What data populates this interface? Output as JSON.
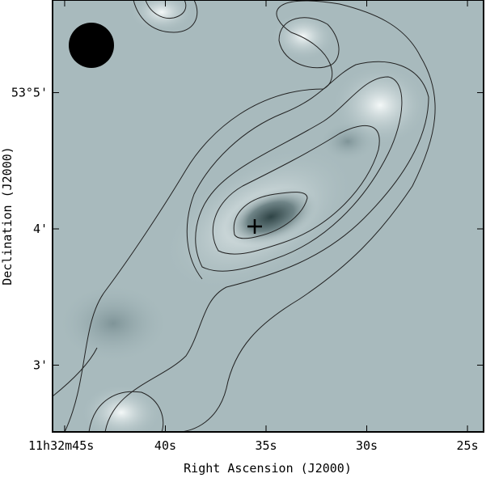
{
  "chart_data": {
    "type": "image",
    "x_label": "Right Ascension (J2000)",
    "y_label": "Declination (J2000)",
    "xlim": [
      45.6,
      24.2
    ],
    "xticks": [
      {
        "value": 45,
        "label": "11h32m45s"
      },
      {
        "value": 40,
        "label": "40s"
      },
      {
        "value": 35,
        "label": "35s"
      },
      {
        "value": 30,
        "label": "30s"
      },
      {
        "value": 25,
        "label": "25s"
      }
    ],
    "ylim": [
      2.51,
      5.68
    ],
    "yticks": [
      {
        "value": 3,
        "label": "3'"
      },
      {
        "value": 4,
        "label": "4'"
      },
      {
        "value": 5,
        "label": "53°5'"
      }
    ]
  }
}
